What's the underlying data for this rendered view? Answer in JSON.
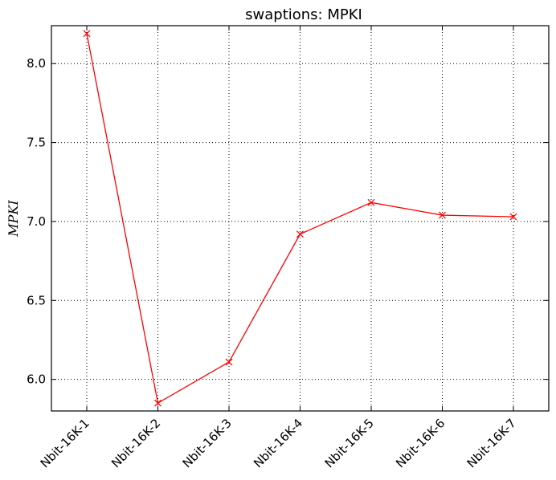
{
  "chart_data": {
    "type": "line",
    "title": "swaptions: MPKI",
    "xlabel": "",
    "ylabel": "MPKI",
    "categories": [
      "Nbit-16K-1",
      "Nbit-16K-2",
      "Nbit-16K-3",
      "Nbit-16K-4",
      "Nbit-16K-5",
      "Nbit-16K-6",
      "Nbit-16K-7"
    ],
    "series": [
      {
        "values": [
          8.19,
          5.85,
          6.11,
          6.92,
          7.12,
          7.04,
          7.03
        ],
        "color": "#ff0000",
        "marker": "x"
      }
    ],
    "yticks": [
      "6.0",
      "6.5",
      "7.0",
      "7.5",
      "8.0"
    ],
    "ylim": [
      5.8,
      8.24
    ],
    "grid": true,
    "legend": "none"
  }
}
